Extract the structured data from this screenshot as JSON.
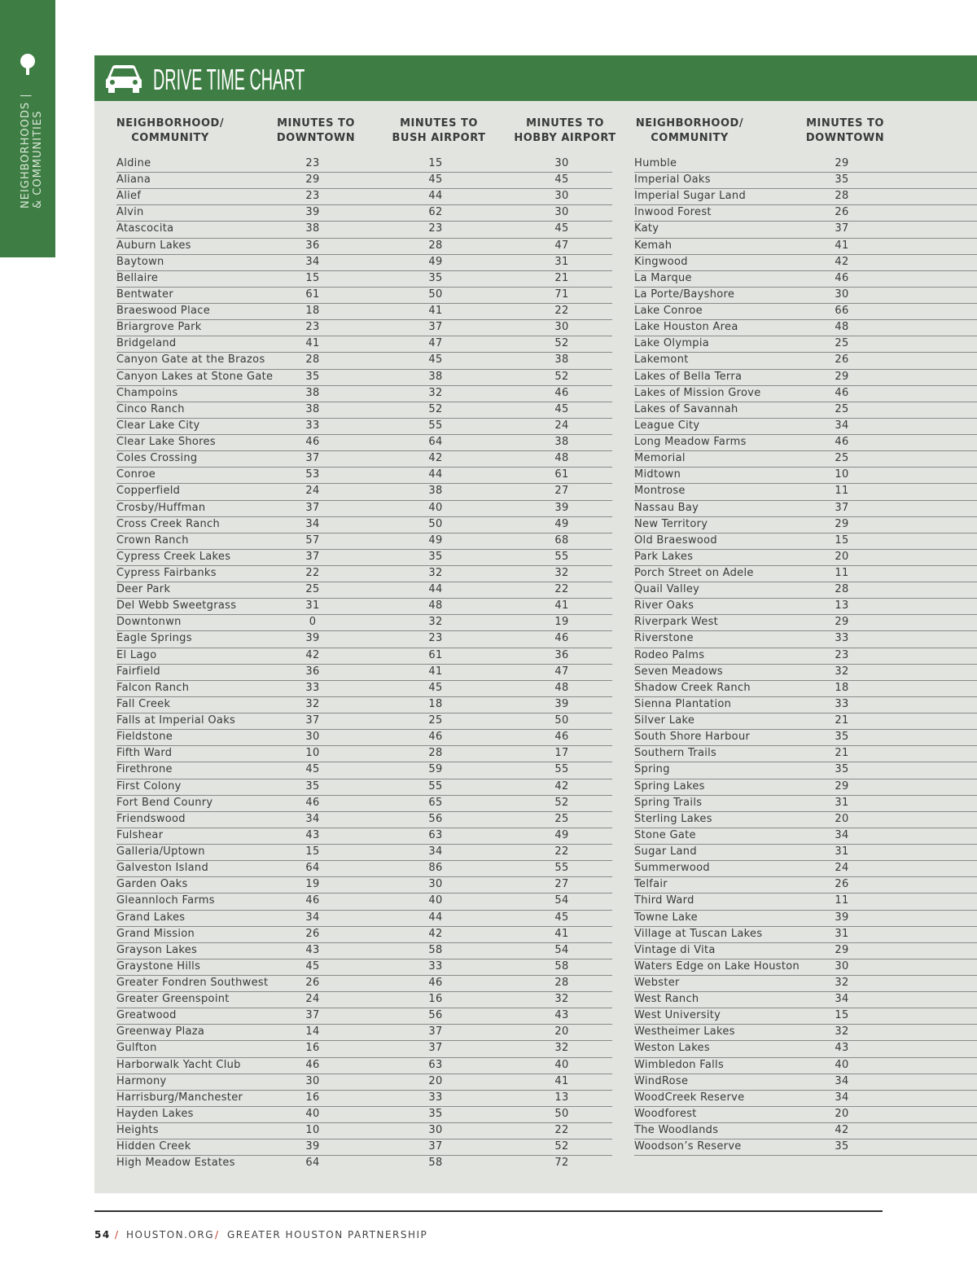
{
  "sidebar": {
    "line1": "NEIGHBORHOODS |",
    "line2": "& COMMUNITIES"
  },
  "header": {
    "title": "DRIVE TIME CHART"
  },
  "left_table": {
    "headers": [
      "NEIGHBORHOOD/\nCOMMUNITY",
      "MINUTES TO\nDOWNTOWN",
      "MINUTES TO\nBUSH AIRPORT",
      "MINUTES TO\nHOBBY AIRPORT"
    ],
    "rows": [
      [
        "Aldine",
        23,
        15,
        30
      ],
      [
        "Aliana",
        29,
        45,
        45
      ],
      [
        "Alief",
        23,
        44,
        30
      ],
      [
        "Alvin",
        39,
        62,
        30
      ],
      [
        "Atascocita",
        38,
        23,
        45
      ],
      [
        "Auburn Lakes",
        36,
        28,
        47
      ],
      [
        "Baytown",
        34,
        49,
        31
      ],
      [
        "Bellaire",
        15,
        35,
        21
      ],
      [
        "Bentwater",
        61,
        50,
        71
      ],
      [
        "Braeswood Place",
        18,
        41,
        22
      ],
      [
        "Briargrove Park",
        23,
        37,
        30
      ],
      [
        "Bridgeland",
        41,
        47,
        52
      ],
      [
        "Canyon Gate at the Brazos",
        28,
        45,
        38
      ],
      [
        "Canyon Lakes at Stone Gate",
        35,
        38,
        52
      ],
      [
        "Champoins",
        38,
        32,
        46
      ],
      [
        "Cinco Ranch",
        38,
        52,
        45
      ],
      [
        "Clear Lake City",
        33,
        55,
        24
      ],
      [
        "Clear Lake Shores",
        46,
        64,
        38
      ],
      [
        "Coles Crossing",
        37,
        42,
        48
      ],
      [
        "Conroe",
        53,
        44,
        61
      ],
      [
        "Copperfield",
        24,
        38,
        27
      ],
      [
        "Crosby/Huffman",
        37,
        40,
        39
      ],
      [
        "Cross Creek Ranch",
        34,
        50,
        49
      ],
      [
        "Crown Ranch",
        57,
        49,
        68
      ],
      [
        "Cypress Creek Lakes",
        37,
        35,
        55
      ],
      [
        "Cypress Fairbanks",
        22,
        32,
        32
      ],
      [
        "Deer Park",
        25,
        44,
        22
      ],
      [
        "Del Webb Sweetgrass",
        31,
        48,
        41
      ],
      [
        "Downtonwn",
        0,
        32,
        19
      ],
      [
        "Eagle Springs",
        39,
        23,
        46
      ],
      [
        "El Lago",
        42,
        61,
        36
      ],
      [
        "Fairfield",
        36,
        41,
        47
      ],
      [
        "Falcon Ranch",
        33,
        45,
        48
      ],
      [
        "Fall Creek",
        32,
        18,
        39
      ],
      [
        "Falls at Imperial Oaks",
        37,
        25,
        50
      ],
      [
        "Fieldstone",
        30,
        46,
        46
      ],
      [
        "Fifth Ward",
        10,
        28,
        17
      ],
      [
        "Firethrone",
        45,
        59,
        55
      ],
      [
        "First Colony",
        35,
        55,
        42
      ],
      [
        "Fort Bend Counry",
        46,
        65,
        52
      ],
      [
        "Friendswood",
        34,
        56,
        25
      ],
      [
        "Fulshear",
        43,
        63,
        49
      ],
      [
        "Galleria/Uptown",
        15,
        34,
        22
      ],
      [
        "Galveston Island",
        64,
        86,
        55
      ],
      [
        "Garden Oaks",
        19,
        30,
        27
      ],
      [
        "Gleannloch Farms",
        46,
        40,
        54
      ],
      [
        "Grand Lakes",
        34,
        44,
        45
      ],
      [
        "Grand Mission",
        26,
        42,
        41
      ],
      [
        "Grayson Lakes",
        43,
        58,
        54
      ],
      [
        "Graystone Hills",
        45,
        33,
        58
      ],
      [
        "Greater Fondren Southwest",
        26,
        46,
        28
      ],
      [
        "Greater Greenspoint",
        24,
        16,
        32
      ],
      [
        "Greatwood",
        37,
        56,
        43
      ],
      [
        "Greenway Plaza",
        14,
        37,
        20
      ],
      [
        "Gulfton",
        16,
        37,
        32
      ],
      [
        "Harborwalk Yacht Club",
        46,
        63,
        40
      ],
      [
        "Harmony",
        30,
        20,
        41
      ],
      [
        "Harrisburg/Manchester",
        16,
        33,
        13
      ],
      [
        "Hayden Lakes",
        40,
        35,
        50
      ],
      [
        "Heights",
        10,
        30,
        22
      ],
      [
        "Hidden Creek",
        39,
        37,
        52
      ],
      [
        "High Meadow Estates",
        64,
        58,
        72
      ]
    ]
  },
  "right_table": {
    "headers": [
      "NEIGHBORHOOD/\nCOMMUNITY",
      "MINUTES TO\nDOWNTOWN"
    ],
    "rows": [
      [
        "Humble",
        29
      ],
      [
        "Imperial Oaks",
        35
      ],
      [
        "Imperial Sugar Land",
        28
      ],
      [
        "Inwood Forest",
        26
      ],
      [
        "Katy",
        37
      ],
      [
        "Kemah",
        41
      ],
      [
        "Kingwood",
        42
      ],
      [
        "La Marque",
        46
      ],
      [
        "La Porte/Bayshore",
        30
      ],
      [
        "Lake Conroe",
        66
      ],
      [
        "Lake Houston Area",
        48
      ],
      [
        "Lake Olympia",
        25
      ],
      [
        "Lakemont",
        26
      ],
      [
        "Lakes of Bella Terra",
        29
      ],
      [
        "Lakes of Mission Grove",
        46
      ],
      [
        "Lakes of Savannah",
        25
      ],
      [
        "League City",
        34
      ],
      [
        "Long Meadow Farms",
        46
      ],
      [
        "Memorial",
        25
      ],
      [
        "Midtown",
        10
      ],
      [
        "Montrose",
        11
      ],
      [
        "Nassau Bay",
        37
      ],
      [
        "New Territory",
        29
      ],
      [
        "Old Braeswood",
        15
      ],
      [
        "Park Lakes",
        20
      ],
      [
        "Porch Street on Adele",
        11
      ],
      [
        "Quail Valley",
        28
      ],
      [
        "River Oaks",
        13
      ],
      [
        "Riverpark West",
        29
      ],
      [
        "Riverstone",
        33
      ],
      [
        "Rodeo Palms",
        23
      ],
      [
        "Seven Meadows",
        32
      ],
      [
        "Shadow Creek Ranch",
        18
      ],
      [
        "Sienna Plantation",
        33
      ],
      [
        "Silver Lake",
        21
      ],
      [
        "South Shore Harbour",
        35
      ],
      [
        "Southern Trails",
        21
      ],
      [
        "Spring",
        35
      ],
      [
        "Spring Lakes",
        29
      ],
      [
        "Spring Trails",
        31
      ],
      [
        "Sterling Lakes",
        20
      ],
      [
        "Stone Gate",
        34
      ],
      [
        "Sugar Land",
        31
      ],
      [
        "Summerwood",
        24
      ],
      [
        "Telfair",
        26
      ],
      [
        "Third Ward",
        11
      ],
      [
        "Towne Lake",
        39
      ],
      [
        "Village at Tuscan Lakes",
        31
      ],
      [
        "Vintage di Vita",
        29
      ],
      [
        "Waters Edge on Lake Houston",
        30
      ],
      [
        "Webster",
        32
      ],
      [
        "West Ranch",
        34
      ],
      [
        "West University",
        15
      ],
      [
        "Westheimer Lakes",
        32
      ],
      [
        "Weston Lakes",
        43
      ],
      [
        "Wimbledon Falls",
        40
      ],
      [
        "WindRose",
        34
      ],
      [
        "WoodCreek Reserve",
        34
      ],
      [
        "Woodforest",
        20
      ],
      [
        "The Woodlands",
        42
      ],
      [
        "Woodson’s Reserve",
        35
      ]
    ]
  },
  "footer": {
    "page": "54",
    "site": "HOUSTON.ORG",
    "org": "GREATER HOUSTON PARTNERSHIP"
  }
}
